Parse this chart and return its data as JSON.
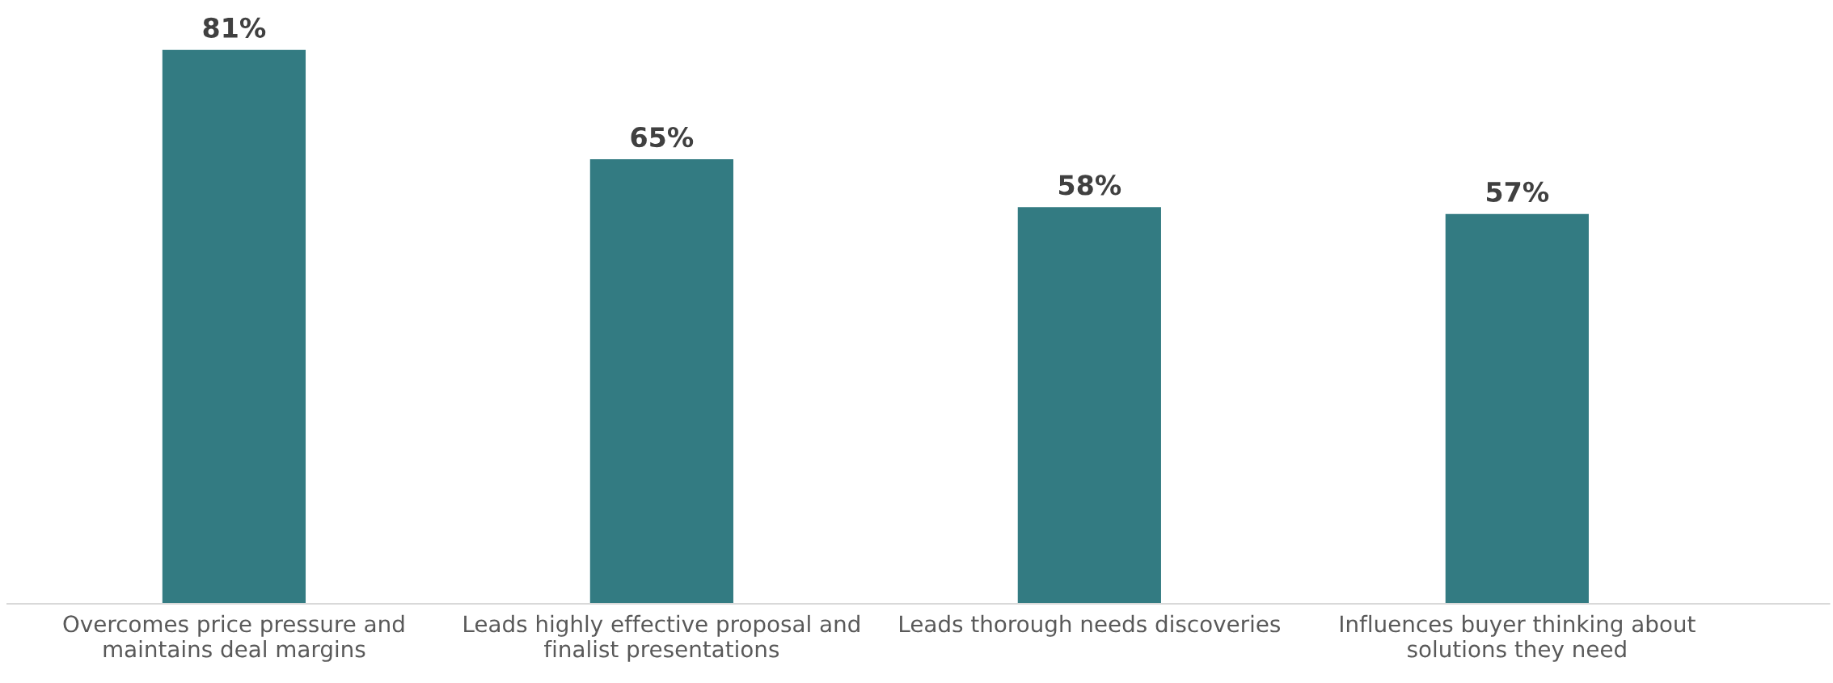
{
  "chart_data": {
    "type": "bar",
    "categories": [
      "Overcomes price pressure and\nmaintains deal margins",
      "Leads highly effective proposal and\nfinalist presentations",
      "Leads thorough needs discoveries",
      "Influences buyer thinking about\nsolutions they need"
    ],
    "values": [
      81,
      65,
      58,
      57
    ],
    "value_labels": [
      "81%",
      "65%",
      "58%",
      "57%"
    ],
    "color": "#337b82",
    "grid": false,
    "legend": false
  }
}
